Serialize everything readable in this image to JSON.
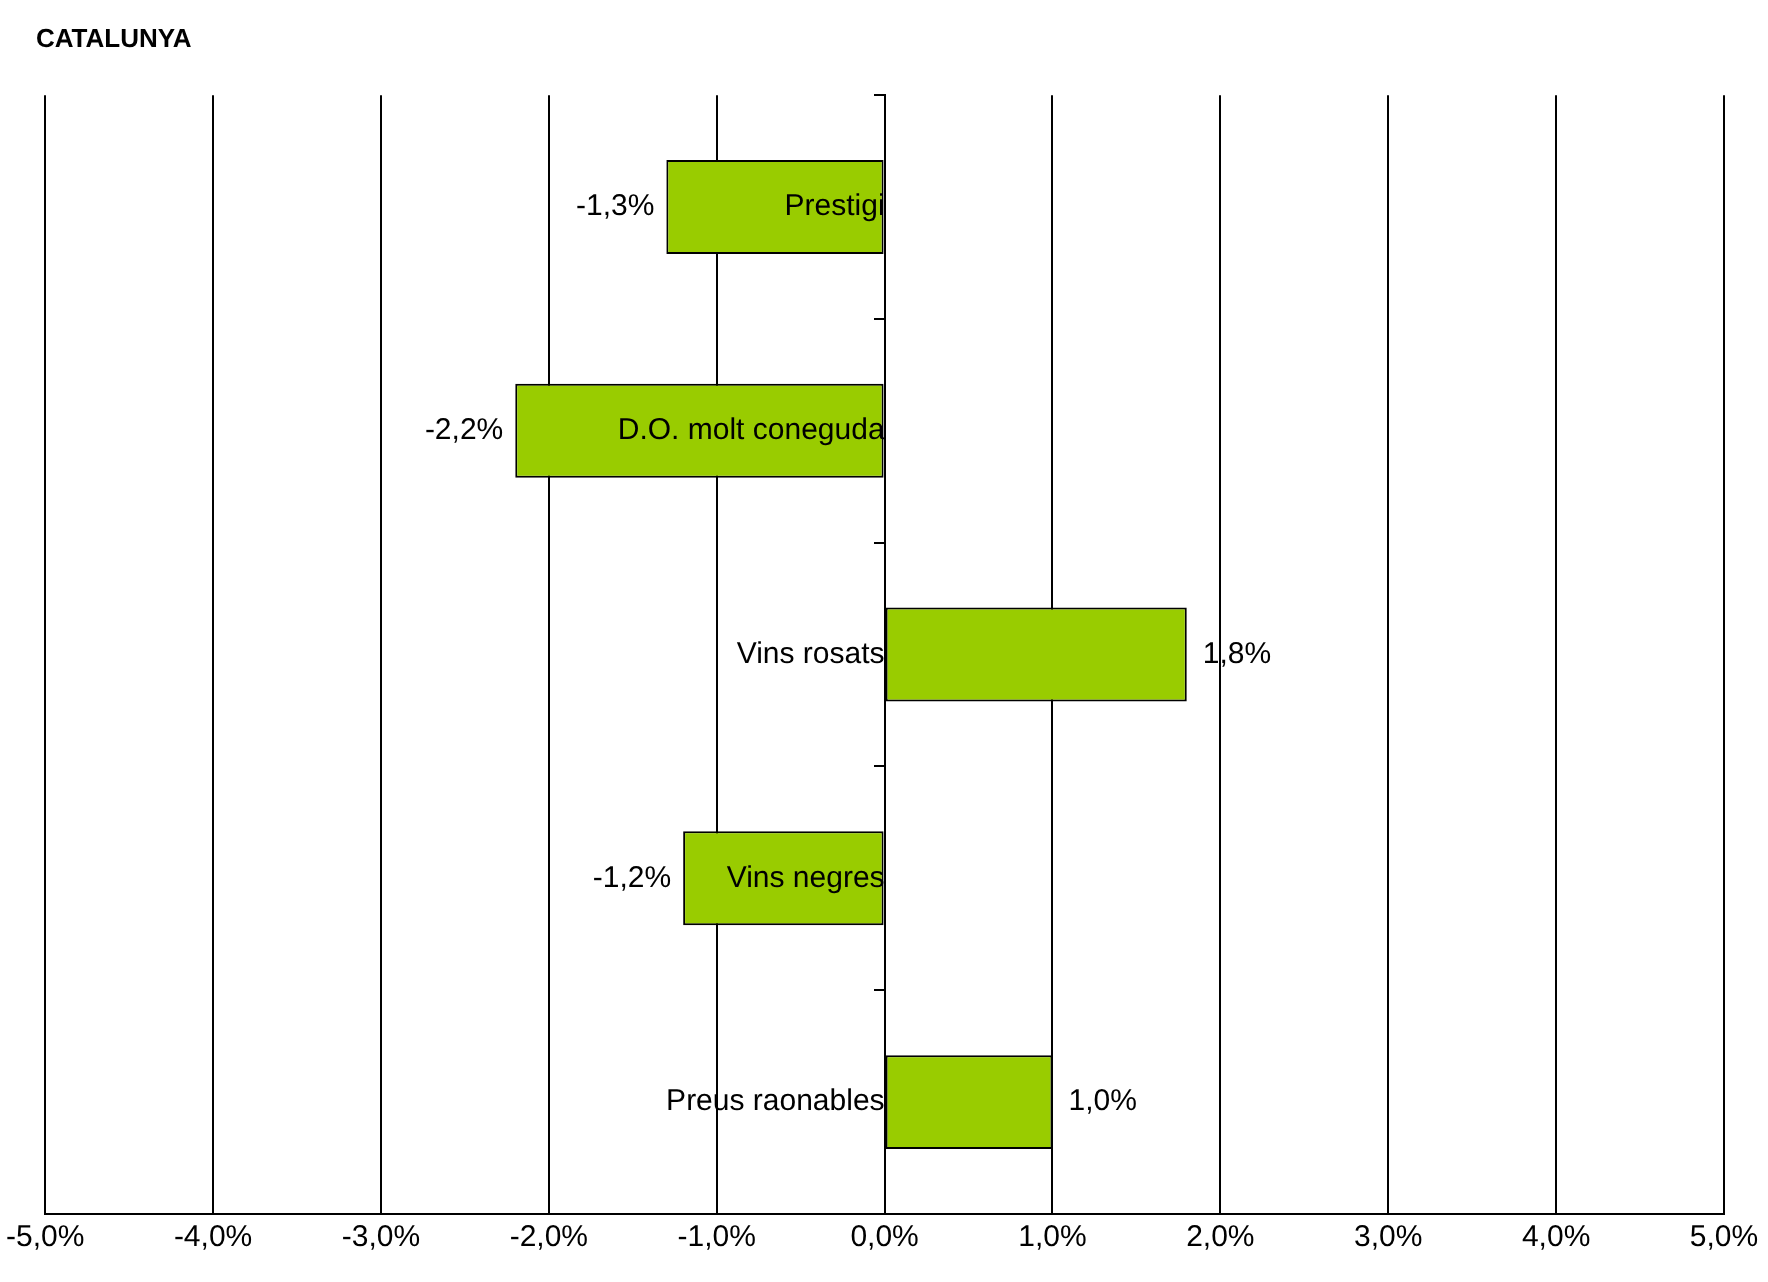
{
  "chart_data": {
    "type": "bar",
    "orientation": "horizontal",
    "title": "CATALUNYA",
    "categories": [
      "Prestigi",
      "D.O. molt coneguda",
      "Vins rosats",
      "Vins negres",
      "Preus raonables"
    ],
    "values": [
      -1.3,
      -2.2,
      1.8,
      -1.2,
      1.0
    ],
    "value_labels": [
      "-1,3%",
      "-2,2%",
      "1,8%",
      "-1,2%",
      "1,0%"
    ],
    "color": "#99cc00",
    "xlim": [
      -5,
      5
    ],
    "xticks": [
      {
        "value": -5,
        "label": "-5,0%"
      },
      {
        "value": -4,
        "label": "-4,0%"
      },
      {
        "value": -3,
        "label": "-3,0%"
      },
      {
        "value": -2,
        "label": "-2,0%"
      },
      {
        "value": -1,
        "label": "-1,0%"
      },
      {
        "value": 0,
        "label": "0,0%"
      },
      {
        "value": 1,
        "label": "1,0%"
      },
      {
        "value": 2,
        "label": "2,0%"
      },
      {
        "value": 3,
        "label": "3,0%"
      },
      {
        "value": 4,
        "label": "4,0%"
      },
      {
        "value": 5,
        "label": "5,0%"
      }
    ],
    "grid": "x"
  }
}
